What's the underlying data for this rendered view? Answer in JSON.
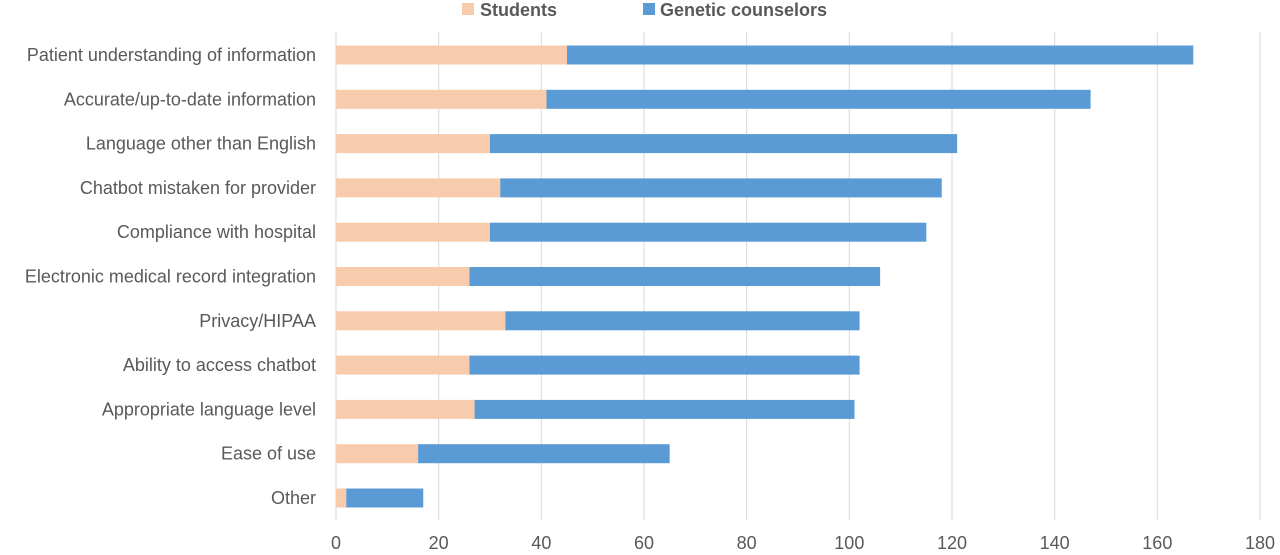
{
  "chart_data": {
    "type": "bar",
    "orientation": "horizontal",
    "stacked": true,
    "title": "",
    "xlabel": "",
    "ylabel": "",
    "xlim": [
      0,
      180
    ],
    "x_ticks": [
      0,
      20,
      40,
      60,
      80,
      100,
      120,
      140,
      160,
      180
    ],
    "grid": "vertical",
    "legend_position": "top",
    "categories": [
      "Patient understanding of information",
      "Accurate/up-to-date information",
      "Language other than English",
      "Chatbot mistaken for provider",
      "Compliance with hospital",
      "Electronic medical record integration",
      "Privacy/HIPAA",
      "Ability to access chatbot",
      "Appropriate language level",
      "Ease of use",
      "Other"
    ],
    "series": [
      {
        "name": "Students",
        "color": "#f8cbad",
        "values": [
          45,
          41,
          30,
          32,
          30,
          26,
          33,
          26,
          27,
          16,
          2
        ]
      },
      {
        "name": "Genetic counselors",
        "color": "#5b9bd5",
        "values": [
          122,
          106,
          91,
          86,
          85,
          80,
          69,
          76,
          74,
          49,
          15
        ]
      }
    ]
  }
}
